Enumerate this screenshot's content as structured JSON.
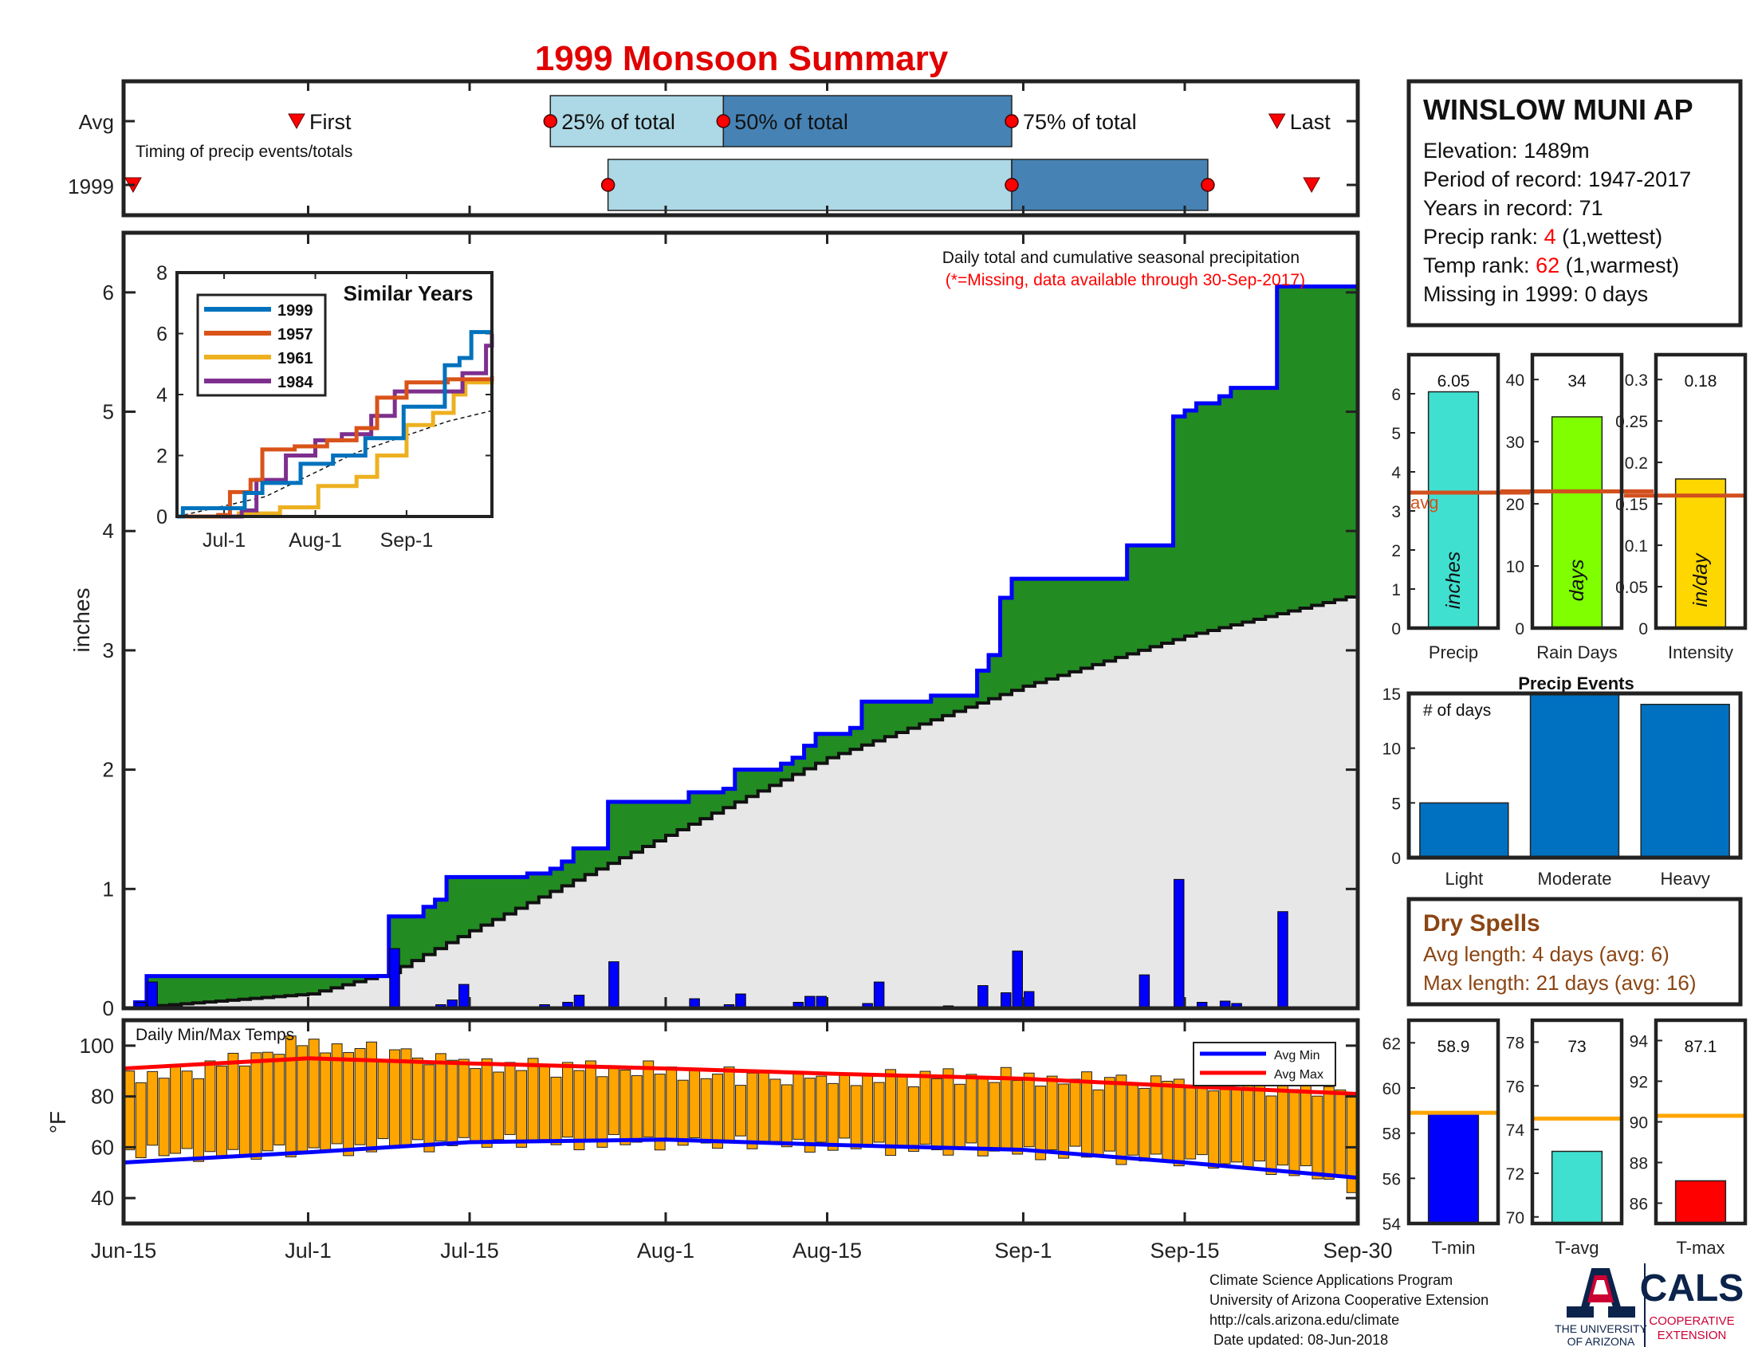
{
  "title": "1999 Monsoon Summary",
  "timing": {
    "row_avg_label": "Avg",
    "row_year_label": "1999",
    "caption": "Timing of precip events/totals",
    "first_label": "First",
    "last_label": "Last",
    "q25_label": "25% of total",
    "q50_label": "50% of total",
    "q75_label": "75% of total",
    "avg": {
      "first": "Jun-30",
      "q25": "Jul-22",
      "q50": "Aug-6",
      "q75": "Aug-31",
      "last": "Sep-23"
    },
    "year": {
      "first": "Jun-15",
      "q25": "Jul-27",
      "q50": "Aug-31",
      "q75": "Sep-17",
      "last": "Sep-26"
    },
    "colors": {
      "light": "#add8e6",
      "dark": "#4682b4",
      "marker": "#ff0000"
    }
  },
  "station": {
    "name": "WINSLOW MUNI AP",
    "elevation_label": "Elevation: 1489m",
    "period_label": "Period of record: 1947-2017",
    "years_label": "Years in record: 71",
    "precip_rank_prefix": "Precip rank: ",
    "precip_rank": "4",
    "precip_rank_suffix": " (1,wettest)",
    "temp_rank_prefix": "Temp rank: ",
    "temp_rank": "62",
    "temp_rank_suffix": " (1,warmest)",
    "missing_label": "Missing in 1999: 0 days"
  },
  "precip_chart_text": {
    "caption": "Daily total and cumulative seasonal precipitation",
    "missing_note": "(*=Missing, data available through 30-Sep-2017)",
    "y_label": "inches",
    "x_ticks": [
      "Jun-15",
      "Jul-1",
      "Jul-15",
      "Aug-1",
      "Aug-15",
      "Sep-1",
      "Sep-15",
      "Sep-30"
    ]
  },
  "inset": {
    "title": "Similar Years",
    "x_ticks": [
      "Jul-1",
      "Aug-1",
      "Sep-1"
    ],
    "y_ticks": [
      "0",
      "2",
      "4",
      "6",
      "8"
    ]
  },
  "temp_chart_text": {
    "caption": "Daily Min/Max Temps",
    "y_label": "°F",
    "legend_min": "Avg Min",
    "legend_max": "Avg Max"
  },
  "summary_bars": {
    "precip": {
      "label": "Precip",
      "value_label": "6.05",
      "unit": "inches",
      "avg_label": "avg"
    },
    "rain_days": {
      "label": "Rain Days",
      "value_label": "34",
      "unit": "days"
    },
    "intensity": {
      "label": "Intensity",
      "value_label": "0.18",
      "unit": "in/day"
    }
  },
  "events": {
    "title": "Precip Events",
    "subtitle": "# of days"
  },
  "dry_spells": {
    "title": "Dry Spells",
    "avg_line": "Avg length: 4 days (avg: 6)",
    "max_line": "Max length: 21 days (avg: 16)"
  },
  "temp_bars": {
    "tmin": {
      "label": "T-min",
      "value_label": "58.9"
    },
    "tavg": {
      "label": "T-avg",
      "value_label": "73"
    },
    "tmax": {
      "label": "T-max",
      "value_label": "87.1"
    }
  },
  "footer": {
    "line1": "Climate Science Applications Program",
    "line2": "University of Arizona Cooperative Extension",
    "line3": "http://cals.arizona.edu/climate",
    "line4": " Date updated: 08-Jun-2018",
    "ua_logo": "THE UNIVERSITY OF ARIZONA",
    "ua_line1": "THE UNIVERSITY",
    "ua_line2": "OF ARIZONA",
    "cals_logo": "CALS",
    "cals_sub1": "COOPERATIVE",
    "cals_sub2": "EXTENSION"
  },
  "colors": {
    "green": "#228b22",
    "blue": "#0000ff",
    "grey": "#e8e7e7",
    "orange": "#ffa500",
    "red": "#ff0000",
    "avg_line": "#d2501e",
    "brown": "#8b4513",
    "cyan": "#40e0d0",
    "lime": "#7fff00",
    "gold": "#ffd700",
    "event_blue": "#0070c0",
    "s1999": "#0072bd",
    "s1957": "#d95319",
    "s1961": "#edb120",
    "s1984": "#7e2f8e"
  },
  "chart_data": [
    {
      "type": "bar",
      "title": "Daily total and cumulative seasonal precipitation",
      "ylabel": "inches",
      "ylim": [
        0,
        6.5
      ],
      "xlim": [
        "Jun-15",
        "Sep-30"
      ],
      "daily_precip": [
        {
          "date": "Jun-16",
          "value": 0.05
        },
        {
          "date": "Jun-17",
          "value": 0.22
        },
        {
          "date": "Jul-8",
          "value": 0.5
        },
        {
          "date": "Jul-12",
          "value": 0.03
        },
        {
          "date": "Jul-13",
          "value": 0.07
        },
        {
          "date": "Jul-14",
          "value": 0.2
        },
        {
          "date": "Jul-21",
          "value": 0.03
        },
        {
          "date": "Jul-23",
          "value": 0.05
        },
        {
          "date": "Jul-24",
          "value": 0.11
        },
        {
          "date": "Jul-27",
          "value": 0.39
        },
        {
          "date": "Aug-3",
          "value": 0.08
        },
        {
          "date": "Aug-6",
          "value": 0.03
        },
        {
          "date": "Aug-7",
          "value": 0.12
        },
        {
          "date": "Aug-12",
          "value": 0.05
        },
        {
          "date": "Aug-13",
          "value": 0.1
        },
        {
          "date": "Aug-14",
          "value": 0.1
        },
        {
          "date": "Aug-18",
          "value": 0.04
        },
        {
          "date": "Aug-19",
          "value": 0.22
        },
        {
          "date": "Aug-25",
          "value": 0.02
        },
        {
          "date": "Aug-28",
          "value": 0.19
        },
        {
          "date": "Aug-30",
          "value": 0.13
        },
        {
          "date": "Aug-31",
          "value": 0.48
        },
        {
          "date": "Sep-1",
          "value": 0.14
        },
        {
          "date": "Sep-11",
          "value": 0.28
        },
        {
          "date": "Sep-14",
          "value": 1.08
        },
        {
          "date": "Sep-16",
          "value": 0.05
        },
        {
          "date": "Sep-18",
          "value": 0.06
        },
        {
          "date": "Sep-19",
          "value": 0.04
        },
        {
          "date": "Sep-23",
          "value": 0.81
        }
      ],
      "cumulative_1999": [
        [
          "Jun-15",
          0.0
        ],
        [
          "Jun-16",
          0.05
        ],
        [
          "Jun-17",
          0.27
        ],
        [
          "Jul-7",
          0.27
        ],
        [
          "Jul-8",
          0.77
        ],
        [
          "Jul-11",
          0.85
        ],
        [
          "Jul-12",
          0.91
        ],
        [
          "Jul-13",
          1.1
        ],
        [
          "Jul-20",
          1.13
        ],
        [
          "Jul-22",
          1.17
        ],
        [
          "Jul-23",
          1.23
        ],
        [
          "Jul-24",
          1.34
        ],
        [
          "Jul-27",
          1.73
        ],
        [
          "Aug-3",
          1.81
        ],
        [
          "Aug-6",
          1.84
        ],
        [
          "Aug-7",
          2.0
        ],
        [
          "Aug-11",
          2.05
        ],
        [
          "Aug-12",
          2.1
        ],
        [
          "Aug-13",
          2.2
        ],
        [
          "Aug-14",
          2.3
        ],
        [
          "Aug-17",
          2.35
        ],
        [
          "Aug-18",
          2.57
        ],
        [
          "Aug-24",
          2.62
        ],
        [
          "Aug-28",
          2.83
        ],
        [
          "Aug-29",
          2.96
        ],
        [
          "Aug-30",
          3.44
        ],
        [
          "Aug-31",
          3.6
        ],
        [
          "Sep-10",
          3.88
        ],
        [
          "Sep-14",
          4.96
        ],
        [
          "Sep-15",
          5.01
        ],
        [
          "Sep-16",
          5.07
        ],
        [
          "Sep-18",
          5.13
        ],
        [
          "Sep-19",
          5.2
        ],
        [
          "Sep-23",
          6.05
        ],
        [
          "Sep-30",
          6.05
        ]
      ],
      "cumulative_average": [
        [
          "Jun-15",
          0.0
        ],
        [
          "Jul-1",
          0.12
        ],
        [
          "Jul-8",
          0.3
        ],
        [
          "Jul-15",
          0.65
        ],
        [
          "Aug-1",
          1.45
        ],
        [
          "Aug-15",
          2.1
        ],
        [
          "Sep-1",
          2.7
        ],
        [
          "Sep-15",
          3.12
        ],
        [
          "Sep-30",
          3.47
        ]
      ]
    },
    {
      "type": "line",
      "title": "Similar Years",
      "ylim": [
        0,
        8
      ],
      "xlim": [
        "Jun-15",
        "Sep-30"
      ],
      "series": [
        {
          "name": "1999",
          "points": [
            [
              "Jun-15",
              0.0
            ],
            [
              "Jun-17",
              0.27
            ],
            [
              "Jul-8",
              0.77
            ],
            [
              "Jul-14",
              1.1
            ],
            [
              "Jul-27",
              1.73
            ],
            [
              "Aug-7",
              2.0
            ],
            [
              "Aug-18",
              2.57
            ],
            [
              "Aug-31",
              3.6
            ],
            [
              "Sep-14",
              4.96
            ],
            [
              "Sep-19",
              5.2
            ],
            [
              "Sep-23",
              6.05
            ],
            [
              "Sep-30",
              6.05
            ]
          ]
        },
        {
          "name": "1957",
          "points": [
            [
              "Jun-15",
              0.0
            ],
            [
              "Jun-29",
              0.05
            ],
            [
              "Jul-3",
              0.8
            ],
            [
              "Jul-10",
              1.2
            ],
            [
              "Jul-14",
              2.2
            ],
            [
              "Jul-25",
              2.3
            ],
            [
              "Aug-5",
              2.5
            ],
            [
              "Aug-15",
              2.9
            ],
            [
              "Aug-22",
              3.9
            ],
            [
              "Sep-1",
              4.4
            ],
            [
              "Sep-15",
              4.5
            ],
            [
              "Sep-30",
              4.6
            ]
          ]
        },
        {
          "name": "1961",
          "points": [
            [
              "Jun-15",
              0.0
            ],
            [
              "Jul-6",
              0.1
            ],
            [
              "Jul-20",
              0.3
            ],
            [
              "Aug-2",
              1.0
            ],
            [
              "Aug-15",
              1.3
            ],
            [
              "Aug-22",
              2.0
            ],
            [
              "Sep-1",
              3.0
            ],
            [
              "Sep-10",
              3.4
            ],
            [
              "Sep-17",
              4.0
            ],
            [
              "Sep-21",
              4.4
            ],
            [
              "Sep-30",
              4.5
            ]
          ]
        },
        {
          "name": "1984",
          "points": [
            [
              "Jun-15",
              0.0
            ],
            [
              "Jul-7",
              0.2
            ],
            [
              "Jul-12",
              1.2
            ],
            [
              "Jul-22",
              2.0
            ],
            [
              "Aug-1",
              2.5
            ],
            [
              "Aug-10",
              2.7
            ],
            [
              "Aug-20",
              3.3
            ],
            [
              "Aug-28",
              4.1
            ],
            [
              "Sep-15",
              4.1
            ],
            [
              "Sep-20",
              4.7
            ],
            [
              "Sep-28",
              5.6
            ],
            [
              "Sep-30",
              6.0
            ]
          ]
        }
      ],
      "average_points": [
        [
          "Jun-15",
          0.0
        ],
        [
          "Jul-15",
          0.65
        ],
        [
          "Aug-15",
          2.1
        ],
        [
          "Sep-15",
          3.12
        ],
        [
          "Sep-30",
          3.47
        ]
      ]
    },
    {
      "type": "bar",
      "title": "Daily Min/Max Temps",
      "ylabel": "°F",
      "ylim": [
        30,
        110
      ],
      "xlim": [
        "Jun-15",
        "Sep-30"
      ],
      "tmax_profile": [
        [
          0,
          88
        ],
        [
          5,
          90
        ],
        [
          10,
          95
        ],
        [
          15,
          101
        ],
        [
          22,
          98
        ],
        [
          30,
          93
        ],
        [
          40,
          91
        ],
        [
          50,
          89
        ],
        [
          60,
          87
        ],
        [
          70,
          88
        ],
        [
          80,
          87
        ],
        [
          90,
          86
        ],
        [
          95,
          85
        ],
        [
          100,
          84
        ],
        [
          107,
          82
        ]
      ],
      "tmin_profile": [
        [
          0,
          58
        ],
        [
          10,
          57
        ],
        [
          20,
          60
        ],
        [
          30,
          62
        ],
        [
          45,
          62
        ],
        [
          60,
          61
        ],
        [
          70,
          59
        ],
        [
          80,
          58
        ],
        [
          90,
          55
        ],
        [
          100,
          52
        ],
        [
          107,
          44
        ]
      ],
      "tmax_variation": [
        2,
        -3,
        1,
        -2,
        3,
        0,
        -4,
        2,
        -1,
        3,
        -3,
        1,
        0,
        -2,
        4,
        -1,
        2,
        -3,
        1,
        -2,
        0,
        3,
        -4,
        1,
        2,
        -1,
        -3,
        2,
        0,
        1,
        -2
      ],
      "tmin_variation": [
        1,
        -2,
        3,
        -1,
        0,
        2,
        -3,
        1,
        -1,
        2,
        0,
        -2,
        1,
        3,
        -2,
        0,
        1,
        -1,
        2,
        -3
      ],
      "avg_max": [
        [
          "Jun-15",
          91
        ],
        [
          "Jul-1",
          95
        ],
        [
          "Jul-15",
          93
        ],
        [
          "Aug-1",
          91
        ],
        [
          "Aug-15",
          89
        ],
        [
          "Sep-1",
          87
        ],
        [
          "Sep-15",
          84
        ],
        [
          "Sep-30",
          81
        ]
      ],
      "avg_min": [
        [
          "Jun-15",
          54
        ],
        [
          "Jul-1",
          58
        ],
        [
          "Jul-15",
          62
        ],
        [
          "Aug-1",
          63
        ],
        [
          "Aug-15",
          61
        ],
        [
          "Sep-1",
          59
        ],
        [
          "Sep-15",
          54
        ],
        [
          "Sep-30",
          48
        ]
      ]
    },
    {
      "type": "bar",
      "title": "Precip",
      "categories": [
        "Precip"
      ],
      "values": [
        6.05
      ],
      "average": 3.47,
      "ylim": [
        0,
        7
      ]
    },
    {
      "type": "bar",
      "title": "Rain Days",
      "categories": [
        "Rain Days"
      ],
      "values": [
        34
      ],
      "average": 22,
      "ylim": [
        0,
        44
      ]
    },
    {
      "type": "bar",
      "title": "Intensity",
      "categories": [
        "Intensity"
      ],
      "values": [
        0.18
      ],
      "average": 0.16,
      "ylim": [
        0,
        0.33
      ]
    },
    {
      "type": "bar",
      "title": "Precip Events",
      "categories": [
        "Light",
        "Moderate",
        "Heavy"
      ],
      "values": [
        5,
        15,
        14
      ],
      "ylim": [
        0,
        15
      ]
    },
    {
      "type": "bar",
      "title": "T-min",
      "categories": [
        "T-min"
      ],
      "values": [
        58.9
      ],
      "average": 58.9,
      "ylim": [
        54,
        63
      ]
    },
    {
      "type": "bar",
      "title": "T-avg",
      "categories": [
        "T-avg"
      ],
      "values": [
        73
      ],
      "average": 74.5,
      "ylim": [
        69.7,
        79
      ]
    },
    {
      "type": "bar",
      "title": "T-max",
      "categories": [
        "T-max"
      ],
      "values": [
        87.1
      ],
      "average": 90.3,
      "ylim": [
        85,
        95
      ]
    }
  ]
}
